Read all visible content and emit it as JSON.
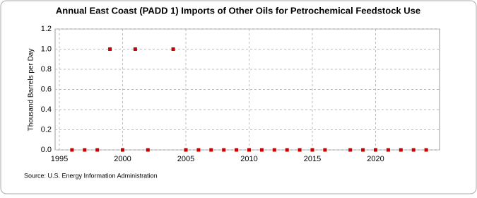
{
  "chart_data": {
    "type": "scatter",
    "title": "Annual East Coast (PADD 1) Imports of Other Oils for Petrochemical Feedstock Use",
    "y_label": "Thousand Barrels per Day",
    "source": "Source: U.S. Energy Information Administration",
    "series": [
      {
        "color": "#cc0000",
        "x": [
          1996,
          1997,
          1998,
          1999,
          2000,
          2001,
          2002,
          2004,
          2005,
          2006,
          2007,
          2008,
          2009,
          2010,
          2011,
          2012,
          2013,
          2014,
          2015,
          2016,
          2018,
          2019,
          2020,
          2021,
          2022,
          2023,
          2024
        ],
        "values": [
          0,
          0,
          0,
          1,
          0,
          1,
          0,
          1,
          0,
          0,
          0,
          0,
          0,
          0,
          0,
          0,
          0,
          0,
          0,
          0,
          0,
          0,
          0,
          0,
          0,
          0,
          0
        ]
      }
    ],
    "xlim": [
      1995,
      2025
    ],
    "xticks": [
      1995,
      2000,
      2005,
      2010,
      2015,
      2020
    ],
    "ylim": [
      0,
      1.2
    ],
    "yticks": [
      {
        "value": 0,
        "label": "0.0"
      },
      0.2,
      0.4,
      0.6,
      0.8,
      {
        "value": 1,
        "label": "1.0"
      },
      1.2
    ],
    "grid": true
  }
}
